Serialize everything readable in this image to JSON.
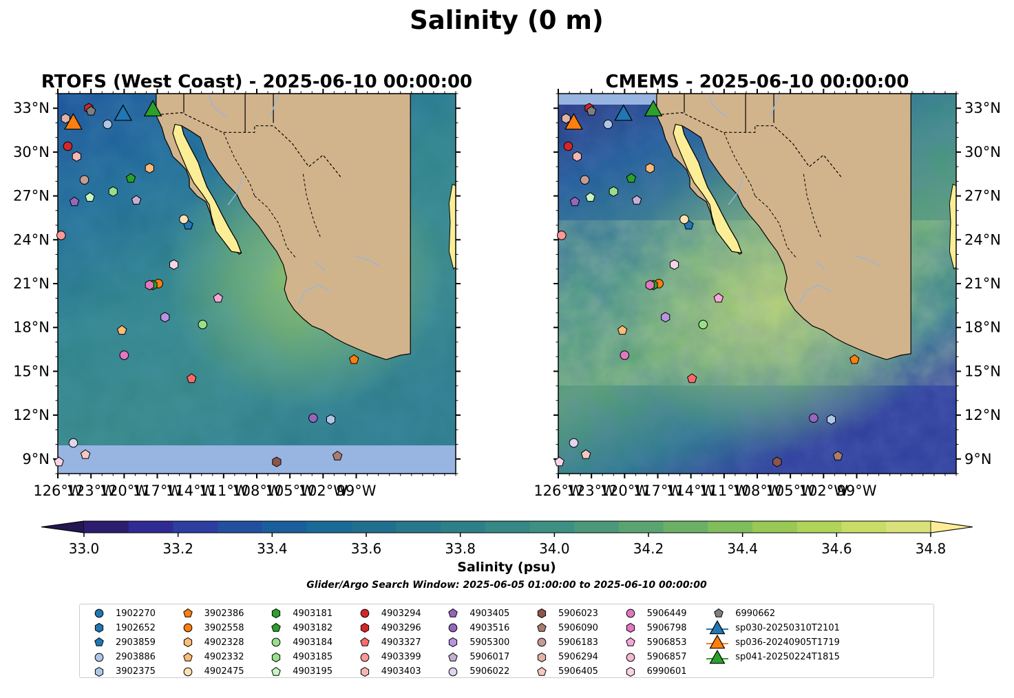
{
  "figure": {
    "suptitle": "Salinity (0 m)",
    "window_note": "Glider/Argo Search Window: 2025-06-05 01:00:00 to 2025-06-10 00:00:00"
  },
  "chart_data": [
    {
      "type": "heatmap",
      "panel": "left",
      "title": "RTOFS (West Coast) - 2025-06-10 00:00:00",
      "xlim": [
        -126,
        -90
      ],
      "ylim": [
        8,
        34
      ],
      "xticks": [
        "126°W",
        "123°W",
        "120°W",
        "117°W",
        "114°W",
        "111°W",
        "108°W",
        "105°W",
        "102°W",
        "99°W"
      ],
      "yticks": [
        "33°N",
        "30°N",
        "27°N",
        "24°N",
        "21°N",
        "18°N",
        "15°N",
        "12°N",
        "9°N"
      ],
      "ytick_side": "left",
      "model_south_limit": 10.0
    },
    {
      "type": "heatmap",
      "panel": "right",
      "title": "CMEMS - 2025-06-10 00:00:00",
      "xlim": [
        -126,
        -90
      ],
      "ylim": [
        8,
        34
      ],
      "xticks": [
        "126°W",
        "123°W",
        "120°W",
        "117°W",
        "114°W",
        "111°W",
        "108°W",
        "105°W",
        "102°W",
        "99°W"
      ],
      "yticks": [
        "33°N",
        "30°N",
        "27°N",
        "24°N",
        "21°N",
        "18°N",
        "15°N",
        "12°N",
        "9°N"
      ],
      "ytick_side": "right"
    }
  ],
  "colorbar": {
    "label": "Salinity (psu)",
    "range": [
      32.9,
      34.9
    ],
    "ticks": [
      "33.0",
      "33.2",
      "33.4",
      "33.6",
      "33.8",
      "34.0",
      "34.2",
      "34.4",
      "34.6",
      "34.8"
    ],
    "extend": "both",
    "colors": [
      "#2c1d6e",
      "#2f2a94",
      "#2d3ea1",
      "#22509f",
      "#1a5f9c",
      "#1a6a98",
      "#206f8f",
      "#27788b",
      "#2d8088",
      "#358886",
      "#3e9082",
      "#4b987a",
      "#5aa472",
      "#6cb065",
      "#80bd5b",
      "#99c854",
      "#b0d35a",
      "#c8dc68",
      "#d9e27a"
    ],
    "over_color": "#fdee95",
    "under_color": "#241650"
  },
  "map_colors": {
    "land": "#d2b48c",
    "nodata": "#98b4e1",
    "gulf": "#fcee96",
    "rivers": "#9bb5d8"
  },
  "floats": [
    {
      "id": "1902270",
      "marker": "circle",
      "color": "#1f77b4",
      "lon": null,
      "lat": null
    },
    {
      "id": "1902652",
      "marker": "hexagon",
      "color": "#1f77b4",
      "lon": null,
      "lat": null
    },
    {
      "id": "2903859",
      "marker": "pentagon",
      "color": "#1f77b4",
      "lon": -114.2,
      "lat": 25.0
    },
    {
      "id": "2903886",
      "marker": "circle",
      "color": "#aec7e8",
      "lon": -121.5,
      "lat": 31.9
    },
    {
      "id": "3902375",
      "marker": "hexagon",
      "color": "#aec7e8",
      "lon": -101.3,
      "lat": 11.7
    },
    {
      "id": "3902386",
      "marker": "pentagon",
      "color": "#ff7f0e",
      "lon": -99.2,
      "lat": 15.8
    },
    {
      "id": "3902558",
      "marker": "circle",
      "color": "#ff7f0e",
      "lon": -116.9,
      "lat": 21.0
    },
    {
      "id": "4902328",
      "marker": "hexagon",
      "color": "#ffbb78",
      "lon": -117.7,
      "lat": 28.9
    },
    {
      "id": "4902332",
      "marker": "pentagon",
      "color": "#ffbb78",
      "lon": -120.2,
      "lat": 17.8
    },
    {
      "id": "4902475",
      "marker": "circle",
      "color": "#ffe0b2",
      "lon": -114.6,
      "lat": 25.4
    },
    {
      "id": "4903181",
      "marker": "hexagon",
      "color": "#2ca02c",
      "lon": -117.4,
      "lat": 20.9
    },
    {
      "id": "4903182",
      "marker": "pentagon",
      "color": "#2ca02c",
      "lon": -119.4,
      "lat": 28.2
    },
    {
      "id": "4903184",
      "marker": "circle",
      "color": "#98df8a",
      "lon": -112.9,
      "lat": 18.2
    },
    {
      "id": "4903185",
      "marker": "hexagon",
      "color": "#98df8a",
      "lon": -121.0,
      "lat": 27.3
    },
    {
      "id": "4903195",
      "marker": "pentagon",
      "color": "#c7f7c0",
      "lon": -123.1,
      "lat": 26.9
    },
    {
      "id": "4903294",
      "marker": "circle",
      "color": "#d62728",
      "lon": -125.1,
      "lat": 30.4
    },
    {
      "id": "4903296",
      "marker": "hexagon",
      "color": "#d62728",
      "lon": -123.2,
      "lat": 33.0
    },
    {
      "id": "4903327",
      "marker": "pentagon",
      "color": "#ff6b6b",
      "lon": -113.9,
      "lat": 14.5
    },
    {
      "id": "4903399",
      "marker": "circle",
      "color": "#ff9896",
      "lon": -125.7,
      "lat": 24.3
    },
    {
      "id": "4903403",
      "marker": "hexagon",
      "color": "#f4b6b4",
      "lon": -124.3,
      "lat": 29.7
    },
    {
      "id": "4903405",
      "marker": "pentagon",
      "color": "#9467bd",
      "lon": -124.5,
      "lat": 26.6
    },
    {
      "id": "4903516",
      "marker": "circle",
      "color": "#9467bd",
      "lon": -102.9,
      "lat": 11.8
    },
    {
      "id": "5905300",
      "marker": "hexagon",
      "color": "#b894e0",
      "lon": -116.3,
      "lat": 18.7
    },
    {
      "id": "5906017",
      "marker": "pentagon",
      "color": "#c5b0d5",
      "lon": -118.9,
      "lat": 26.7
    },
    {
      "id": "5906022",
      "marker": "circle",
      "color": "#e1d4ef",
      "lon": -124.6,
      "lat": 10.1
    },
    {
      "id": "5906023",
      "marker": "hexagon",
      "color": "#8c564b",
      "lon": -106.2,
      "lat": 8.8
    },
    {
      "id": "5906090",
      "marker": "pentagon",
      "color": "#a97d6f",
      "lon": -100.7,
      "lat": 9.2
    },
    {
      "id": "5906183",
      "marker": "circle",
      "color": "#c49c94",
      "lon": -123.6,
      "lat": 28.1
    },
    {
      "id": "5906294",
      "marker": "hexagon",
      "color": "#e0b3a8",
      "lon": -125.3,
      "lat": 32.3
    },
    {
      "id": "5906405",
      "marker": "pentagon",
      "color": "#f7c8c0",
      "lon": -123.5,
      "lat": 9.3
    },
    {
      "id": "5906449",
      "marker": "circle",
      "color": "#e377c2",
      "lon": -120.0,
      "lat": 16.1
    },
    {
      "id": "5906798",
      "marker": "hexagon",
      "color": "#e377c2",
      "lon": -117.7,
      "lat": 20.9
    },
    {
      "id": "5906853",
      "marker": "pentagon",
      "color": "#f7a8d8",
      "lon": -111.5,
      "lat": 20.0
    },
    {
      "id": "5906857",
      "marker": "circle",
      "color": "#f7b6d2",
      "lon": null,
      "lat": null
    },
    {
      "id": "6990601",
      "marker": "hexagon",
      "color": "#fbd3e9",
      "lon": -115.5,
      "lat": 22.3
    },
    {
      "id": "6990662",
      "marker": "pentagon",
      "color": "#7f7f7f",
      "lon": -123.0,
      "lat": 32.8
    }
  ],
  "extra_points": [
    {
      "marker": "pentagon",
      "color": "#fbd3e9",
      "lon": -125.9,
      "lat": 8.8
    }
  ],
  "gliders": [
    {
      "id": "sp030-20250310T2101",
      "color": "#1f77b4",
      "lon": -120.1,
      "lat": 32.6
    },
    {
      "id": "sp036-20240905T1719",
      "color": "#ff7f0e",
      "lon": -124.6,
      "lat": 32.0
    },
    {
      "id": "sp041-20250224T1815",
      "color": "#2ca02c",
      "lon": -117.4,
      "lat": 32.9
    }
  ]
}
